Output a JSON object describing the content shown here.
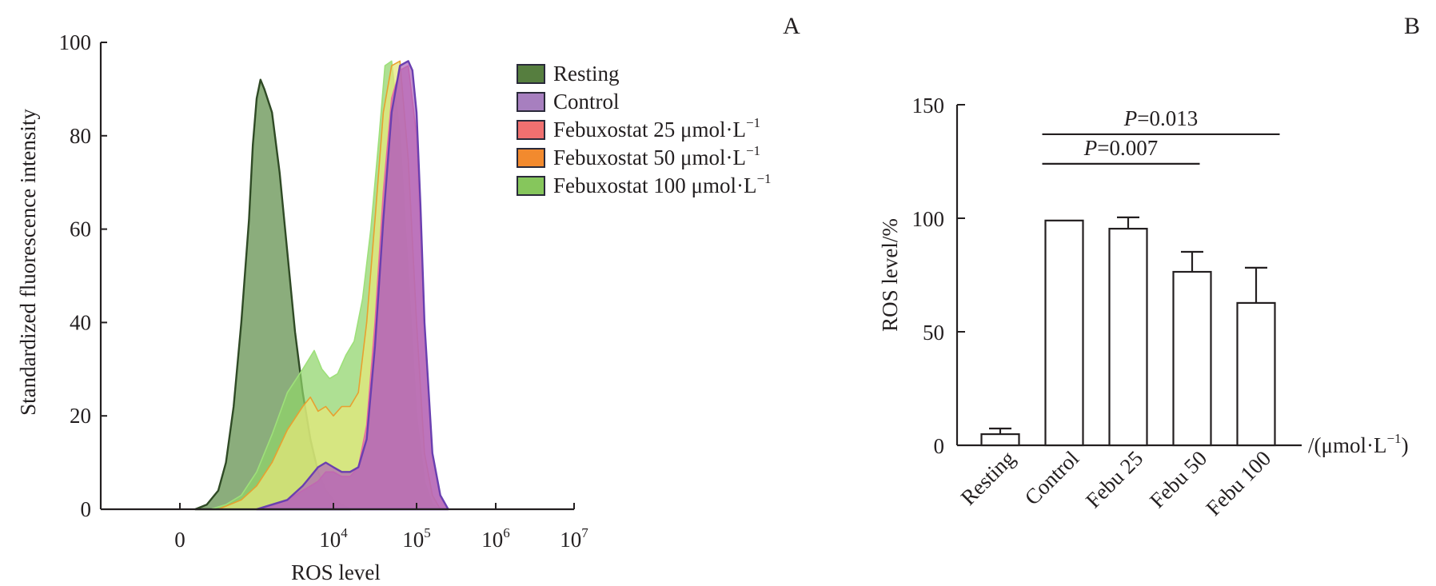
{
  "chart_data": [
    {
      "id": "A",
      "type": "area",
      "panel_label": "A",
      "title": "",
      "xlabel": "ROS level",
      "ylabel": "Standardized fluorescence intensity",
      "xscale": "biexponential/log",
      "xticks": [
        {
          "label": "0",
          "base": "0",
          "exp": ""
        },
        {
          "label": "10^4",
          "base": "10",
          "exp": "4"
        },
        {
          "label": "10^5",
          "base": "10",
          "exp": "5"
        },
        {
          "label": "10^6",
          "base": "10",
          "exp": "6"
        },
        {
          "label": "10^7",
          "base": "10",
          "exp": "7"
        }
      ],
      "yticks": [
        "0",
        "20",
        "40",
        "60",
        "80",
        "100"
      ],
      "ylim": [
        0,
        100
      ],
      "x_axis_units_note": "x positions given in decade units: 0 = '0' tick, 2 = 10^4, 3 = 10^5, 4 = 10^6, 5 = 10^7",
      "legend_position": "top-right",
      "series": [
        {
          "name": "Resting",
          "fill": "#5e8e4a",
          "stroke": "#2f4a25",
          "legend_color": "#567e3f",
          "x": [
            0.2,
            0.35,
            0.5,
            0.6,
            0.7,
            0.8,
            0.9,
            0.95,
            1.0,
            1.05,
            1.1,
            1.2,
            1.3,
            1.4,
            1.5,
            1.6,
            1.7,
            1.8,
            1.9,
            2.0,
            2.1,
            2.2
          ],
          "y": [
            0,
            1,
            4,
            10,
            22,
            40,
            62,
            78,
            88,
            92,
            90,
            85,
            72,
            55,
            38,
            25,
            15,
            8,
            4,
            2,
            1,
            0
          ]
        },
        {
          "name": "Febuxostat 100 μmol·L⁻¹",
          "fill": "#8fd46a",
          "stroke": "#9ee07a",
          "legend_color": "#86c65c",
          "x": [
            0.4,
            0.6,
            0.8,
            1.0,
            1.2,
            1.4,
            1.6,
            1.75,
            1.85,
            1.95,
            2.05,
            2.15,
            2.25,
            2.35,
            2.45,
            2.55,
            2.62,
            2.7,
            2.8,
            2.9,
            3.0,
            3.1,
            3.2,
            3.3
          ],
          "y": [
            0,
            1,
            3,
            8,
            16,
            25,
            30,
            34,
            30,
            28,
            29,
            33,
            36,
            45,
            60,
            80,
            95,
            96,
            80,
            50,
            20,
            6,
            1,
            0
          ]
        },
        {
          "name": "Febuxostat 50 μmol·L⁻¹",
          "fill": "#e6e87a",
          "stroke": "#e8a030",
          "legend_color": "#f28a2e",
          "x": [
            0.5,
            0.8,
            1.0,
            1.2,
            1.4,
            1.6,
            1.7,
            1.8,
            1.9,
            2.0,
            2.1,
            2.2,
            2.3,
            2.4,
            2.5,
            2.6,
            2.7,
            2.8,
            2.9,
            3.0,
            3.1,
            3.2,
            3.3
          ],
          "y": [
            0,
            2,
            5,
            10,
            17,
            22,
            24,
            21,
            22,
            20,
            22,
            22,
            25,
            40,
            62,
            85,
            95,
            96,
            75,
            40,
            12,
            3,
            0
          ]
        },
        {
          "name": "Febuxostat 25 μmol·L⁻¹",
          "fill": "#d36fb0",
          "stroke": "#e86aa0",
          "legend_color": "#f07070",
          "x": [
            1.0,
            1.2,
            1.4,
            1.6,
            1.8,
            1.9,
            2.0,
            2.1,
            2.2,
            2.3,
            2.4,
            2.5,
            2.6,
            2.7,
            2.8,
            2.9,
            3.0,
            3.05,
            3.1,
            3.2,
            3.3,
            3.4
          ],
          "y": [
            0,
            1,
            2,
            4,
            6,
            8,
            8,
            7,
            7,
            9,
            18,
            40,
            68,
            88,
            94,
            95,
            80,
            60,
            40,
            12,
            3,
            0
          ]
        },
        {
          "name": "Control",
          "fill": "#b066b8",
          "stroke": "#6a3fb0",
          "legend_color": "#a77fbf",
          "x": [
            1.0,
            1.2,
            1.4,
            1.6,
            1.8,
            1.9,
            2.0,
            2.1,
            2.2,
            2.3,
            2.4,
            2.5,
            2.6,
            2.7,
            2.8,
            2.9,
            2.95,
            3.0,
            3.05,
            3.1,
            3.2,
            3.3,
            3.4
          ],
          "y": [
            0,
            1,
            2,
            5,
            9,
            10,
            9,
            8,
            8,
            9,
            15,
            35,
            62,
            85,
            95,
            96,
            94,
            85,
            65,
            40,
            12,
            3,
            0
          ]
        }
      ],
      "legend": [
        {
          "label": "Resting",
          "color": "#567e3f"
        },
        {
          "label": "Control",
          "color": "#a77fbf"
        },
        {
          "label": "Febuxostat 25 μmol·L",
          "sup": "−1",
          "color": "#f07070"
        },
        {
          "label": "Febuxostat 50 μmol·L",
          "sup": "−1",
          "color": "#f28a2e"
        },
        {
          "label": "Febuxostat 100 μmol·L",
          "sup": "−1",
          "color": "#86c65c"
        }
      ]
    },
    {
      "id": "B",
      "type": "bar",
      "panel_label": "B",
      "title": "",
      "xlabel": "/(μmol·L⁻¹)",
      "xlabel_parts": {
        "pre": "/(μmol·L",
        "sup": "−1",
        "post": ")"
      },
      "ylabel": "ROS level/%",
      "ylim": [
        0,
        150
      ],
      "yticks": [
        "0",
        "50",
        "100",
        "150"
      ],
      "categories": [
        "Resting",
        "Control",
        "Febu 25",
        "Febu 50",
        "Febu 100"
      ],
      "values": [
        4.9,
        99.0,
        95.4,
        76.4,
        62.7
      ],
      "error_upper": [
        7.4,
        null,
        100.4,
        85.2,
        78.2
      ],
      "bar_fill": "#ffffff",
      "annotations": [
        {
          "text_italic": "P",
          "text": "=0.013",
          "from": "Control",
          "to": "Febu 100",
          "level": 137
        },
        {
          "text_italic": "P",
          "text": "=0.007",
          "from": "Control",
          "to": "Febu 50",
          "level": 124
        }
      ]
    }
  ]
}
